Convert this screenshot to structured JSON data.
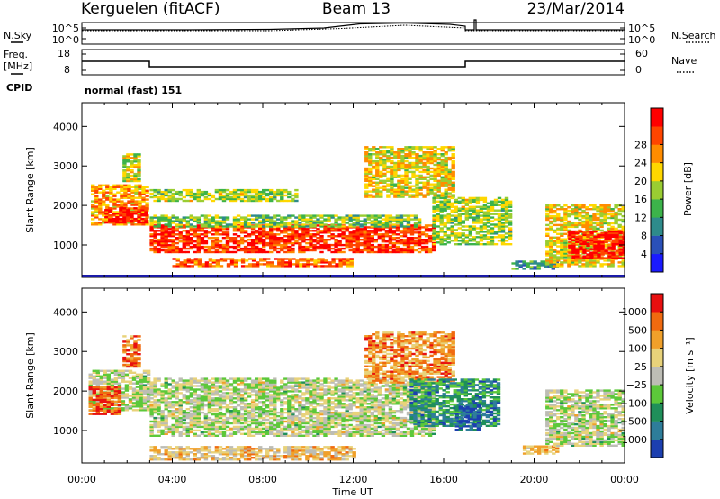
{
  "header": {
    "station": "Kerguelen (fitACF)",
    "beam": "Beam 13",
    "date": "23/Mar/2014"
  },
  "noise_panel": {
    "left_label": "N.Sky",
    "right_label": "N.Search",
    "left_ticks": [
      "10^5",
      "10^0"
    ],
    "right_ticks": [
      "10^5",
      "10^0"
    ]
  },
  "freq_panel": {
    "left_label_1": "Freq.",
    "left_label_2": "[MHz]",
    "right_label": "Nave",
    "left_ticks": [
      "18",
      "8"
    ],
    "right_ticks": [
      "60",
      "0"
    ]
  },
  "cpid": {
    "label": "CPID",
    "value": "normal (fast) 151"
  },
  "colors": {
    "trace": "#000000",
    "power_scale": [
      "#1a1aff",
      "#2a50b8",
      "#2e8b8b",
      "#3cb34a",
      "#9acd32",
      "#ffd700",
      "#ff8c00",
      "#ff4500",
      "#ff0000"
    ],
    "velocity_scale": [
      "#1c3fb0",
      "#2e7d9a",
      "#1f8f5a",
      "#5cc83a",
      "#bdbdb5",
      "#e8d27a",
      "#f0a02a",
      "#f06a10",
      "#e81010"
    ]
  },
  "chart_data": [
    {
      "type": "heatmap",
      "title": "",
      "panel": "power",
      "ylabel": "Slant Range [km]",
      "ylim": [
        180,
        4600
      ],
      "yticks": [
        "1000",
        "2000",
        "3000",
        "4000"
      ],
      "colorbar_label": "Power [dB]",
      "colorbar_ticks": [
        "4",
        "8",
        "12",
        "16",
        "20",
        "24",
        "28"
      ],
      "echo_regions": [
        {
          "t": [
            0.4,
            2.9
          ],
          "r": [
            1500,
            2500
          ],
          "level": 0.7
        },
        {
          "t": [
            1.0,
            2.9
          ],
          "r": [
            1550,
            1950
          ],
          "level": 0.95
        },
        {
          "t": [
            1.8,
            2.6
          ],
          "r": [
            2600,
            3300
          ],
          "level": 0.55
        },
        {
          "t": [
            3.0,
            15.5
          ],
          "r": [
            800,
            1500
          ],
          "level": 0.88
        },
        {
          "t": [
            3.0,
            15.0
          ],
          "r": [
            1450,
            1750
          ],
          "level": 0.45
        },
        {
          "t": [
            3.0,
            9.5
          ],
          "r": [
            2100,
            2400
          ],
          "level": 0.5
        },
        {
          "t": [
            4.0,
            12.0
          ],
          "r": [
            450,
            650
          ],
          "level": 0.8
        },
        {
          "t": [
            12.5,
            16.5
          ],
          "r": [
            2200,
            3500
          ],
          "level": 0.6
        },
        {
          "t": [
            15.5,
            19.0
          ],
          "r": [
            1000,
            2200
          ],
          "level": 0.5
        },
        {
          "t": [
            19.0,
            21.0
          ],
          "r": [
            380,
            580
          ],
          "level": 0.3
        },
        {
          "t": [
            20.5,
            24.0
          ],
          "r": [
            450,
            2000
          ],
          "level": 0.6
        },
        {
          "t": [
            21.5,
            24.0
          ],
          "r": [
            650,
            1350
          ],
          "level": 0.95
        }
      ]
    },
    {
      "type": "heatmap",
      "title": "",
      "panel": "velocity",
      "xlabel": "Time UT",
      "ylabel": "Slant Range [km]",
      "xlim": [
        0,
        24
      ],
      "xticks": [
        "00:00",
        "04:00",
        "08:00",
        "12:00",
        "16:00",
        "20:00",
        "00:00"
      ],
      "ylim": [
        180,
        4600
      ],
      "yticks": [
        "1000",
        "2000",
        "3000",
        "4000"
      ],
      "colorbar_label": "Velocity [m s⁻¹]",
      "colorbar_ticks": [
        "1000",
        "500",
        "100",
        "25",
        "−25",
        "−100",
        "−500",
        "−1000"
      ],
      "echo_regions": [
        {
          "t": [
            0.3,
            2.9
          ],
          "r": [
            1500,
            2500
          ],
          "level": 0.5
        },
        {
          "t": [
            0.3,
            1.6
          ],
          "r": [
            1400,
            2100
          ],
          "level": 0.85
        },
        {
          "t": [
            1.8,
            2.6
          ],
          "r": [
            2600,
            3400
          ],
          "level": 0.8
        },
        {
          "t": [
            3.0,
            15.5
          ],
          "r": [
            850,
            2300
          ],
          "level": 0.5
        },
        {
          "t": [
            3.0,
            12.0
          ],
          "r": [
            250,
            600
          ],
          "level": 0.65
        },
        {
          "t": [
            12.5,
            16.5
          ],
          "r": [
            2200,
            3500
          ],
          "level": 0.75
        },
        {
          "t": [
            14.5,
            18.5
          ],
          "r": [
            1100,
            2300
          ],
          "level": 0.25
        },
        {
          "t": [
            16.5,
            17.5
          ],
          "r": [
            1000,
            1700
          ],
          "level": 0.1
        },
        {
          "t": [
            19.5,
            21.0
          ],
          "r": [
            400,
            600
          ],
          "level": 0.65
        },
        {
          "t": [
            20.5,
            24.0
          ],
          "r": [
            600,
            2000
          ],
          "level": 0.5
        }
      ]
    }
  ]
}
